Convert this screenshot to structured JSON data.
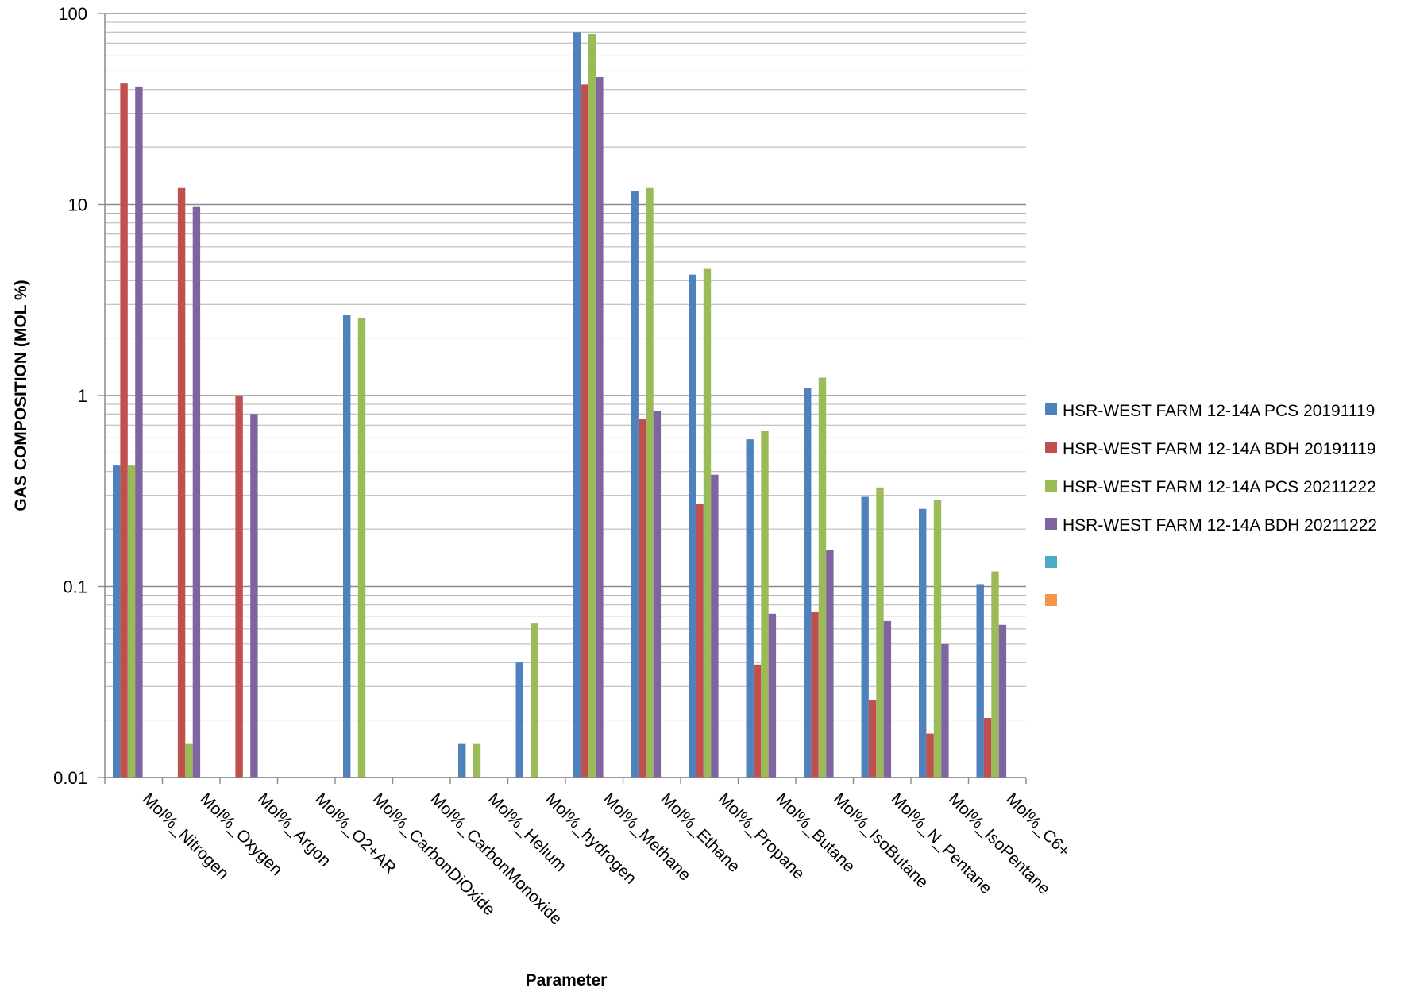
{
  "chart_data": {
    "type": "bar",
    "y_scale": "log",
    "ylim": [
      0.01,
      100
    ],
    "y_ticks": [
      "0.01",
      "0.1",
      "1",
      "10",
      "100"
    ],
    "ylabel": "GAS COMPOSITION (MOL %)",
    "xlabel": "Parameter",
    "grid": true,
    "legend_position": "right",
    "categories": [
      "Mol%_Nitrogen",
      "Mol%_Oxygen",
      "Mol%_Argon",
      "Mol%_O2+AR",
      "Mol%_CarbonDiOxide",
      "Mol%_CarbonMonoxide",
      "Mol%_Helium",
      "Mol%_hydrogen",
      "Mol%_Methane",
      "Mol%_Ethane",
      "Mol%_Propane",
      "Mol%_Butane",
      "Mol%_IsoButane",
      "Mol%_N_Pentane",
      "Mol%_IsoPentane",
      "Mol%_C6+"
    ],
    "series": [
      {
        "name": "HSR-WEST FARM 12-14A PCS 20191119",
        "color": "#4F81BD",
        "values": [
          0.43,
          null,
          null,
          null,
          2.65,
          null,
          0.015,
          0.04,
          80,
          11.8,
          4.3,
          0.59,
          1.09,
          0.295,
          0.255,
          0.103
        ]
      },
      {
        "name": "HSR-WEST FARM 12-14A BDH 20191119",
        "color": "#C0504D",
        "values": [
          43,
          12.2,
          1.0,
          null,
          null,
          null,
          null,
          null,
          42.5,
          0.75,
          0.27,
          0.039,
          0.074,
          0.0255,
          0.017,
          0.0205
        ]
      },
      {
        "name": "HSR-WEST FARM 12-14A PCS 20211222",
        "color": "#9BBB59",
        "values": [
          0.43,
          0.015,
          null,
          null,
          2.55,
          null,
          0.015,
          0.064,
          78,
          12.2,
          4.6,
          0.65,
          1.24,
          0.33,
          0.285,
          0.12
        ]
      },
      {
        "name": "HSR-WEST FARM 12-14A BDH 20211222",
        "color": "#8064A2",
        "values": [
          41.5,
          9.7,
          0.8,
          null,
          null,
          null,
          null,
          null,
          46.5,
          0.83,
          0.385,
          0.072,
          0.155,
          0.066,
          0.05,
          0.063
        ]
      }
    ],
    "extra_legend_swatches": [
      "#4BACC6",
      "#F79646"
    ]
  }
}
